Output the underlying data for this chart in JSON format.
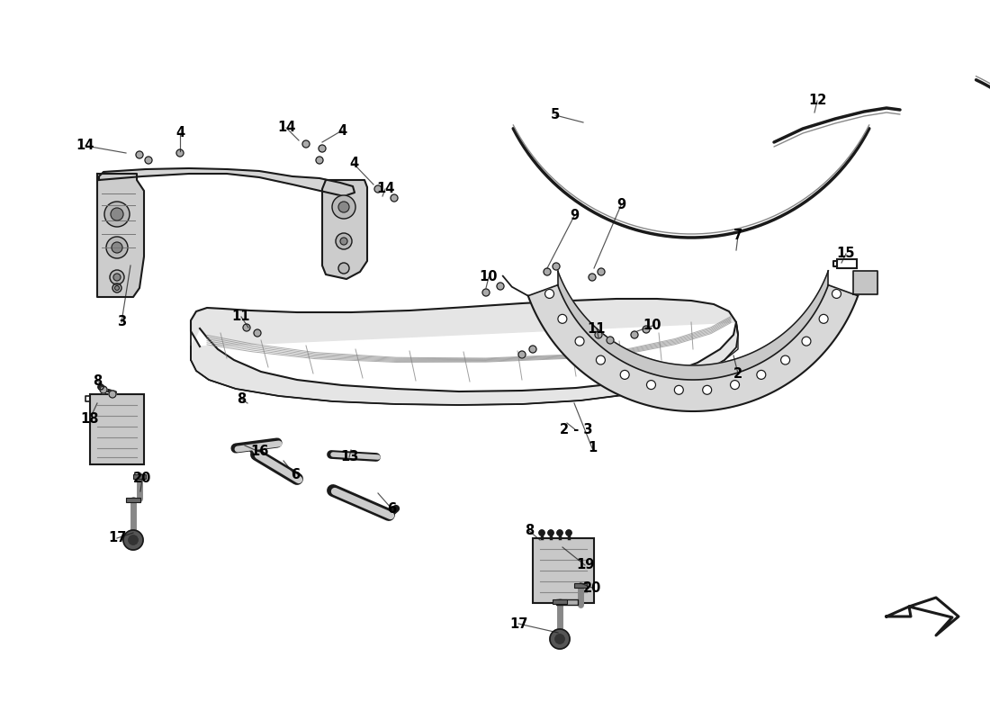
{
  "background_color": "#ffffff",
  "line_color": "#1a1a1a",
  "gray_fill": "#e8e8e8",
  "gray_mid": "#d0d0d0",
  "gray_dark": "#999999",
  "labels": [
    [
      "1",
      658,
      498
    ],
    [
      "2",
      820,
      415
    ],
    [
      "2 - 3",
      640,
      478
    ],
    [
      "3",
      135,
      358
    ],
    [
      "4",
      200,
      148
    ],
    [
      "4",
      380,
      145
    ],
    [
      "4",
      393,
      182
    ],
    [
      "5",
      617,
      128
    ],
    [
      "6",
      328,
      528
    ],
    [
      "6",
      435,
      565
    ],
    [
      "7",
      820,
      262
    ],
    [
      "8",
      108,
      423
    ],
    [
      "8",
      268,
      443
    ],
    [
      "8",
      588,
      590
    ],
    [
      "9",
      638,
      240
    ],
    [
      "9",
      690,
      228
    ],
    [
      "10",
      543,
      308
    ],
    [
      "10",
      725,
      362
    ],
    [
      "11",
      268,
      352
    ],
    [
      "11",
      663,
      365
    ],
    [
      "12",
      908,
      112
    ],
    [
      "13",
      388,
      508
    ],
    [
      "14",
      95,
      162
    ],
    [
      "14",
      318,
      142
    ],
    [
      "14",
      428,
      210
    ],
    [
      "15",
      940,
      282
    ],
    [
      "16",
      288,
      502
    ],
    [
      "17",
      130,
      598
    ],
    [
      "17",
      576,
      693
    ],
    [
      "18",
      100,
      465
    ],
    [
      "19",
      650,
      628
    ],
    [
      "20",
      158,
      532
    ],
    [
      "20",
      658,
      653
    ]
  ],
  "callout_lines": [
    [
      200,
      148,
      200,
      168
    ],
    [
      380,
      145,
      358,
      158
    ],
    [
      393,
      182,
      415,
      205
    ],
    [
      95,
      162,
      140,
      170
    ],
    [
      318,
      142,
      332,
      156
    ],
    [
      428,
      210,
      425,
      218
    ],
    [
      617,
      128,
      648,
      136
    ],
    [
      908,
      112,
      905,
      125
    ],
    [
      820,
      262,
      818,
      278
    ],
    [
      543,
      308,
      540,
      320
    ],
    [
      725,
      362,
      708,
      368
    ],
    [
      268,
      352,
      276,
      364
    ],
    [
      663,
      365,
      665,
      375
    ],
    [
      108,
      423,
      116,
      430
    ],
    [
      268,
      443,
      275,
      448
    ],
    [
      588,
      590,
      600,
      600
    ],
    [
      638,
      240,
      608,
      298
    ],
    [
      690,
      228,
      660,
      298
    ],
    [
      940,
      282,
      935,
      292
    ],
    [
      328,
      528,
      315,
      512
    ],
    [
      435,
      565,
      420,
      548
    ],
    [
      388,
      508,
      390,
      500
    ],
    [
      288,
      502,
      272,
      495
    ],
    [
      100,
      465,
      108,
      448
    ],
    [
      650,
      628,
      625,
      608
    ],
    [
      130,
      598,
      148,
      592
    ],
    [
      576,
      693,
      620,
      703
    ],
    [
      158,
      532,
      156,
      546
    ],
    [
      658,
      653,
      645,
      648
    ],
    [
      135,
      358,
      145,
      295
    ],
    [
      658,
      498,
      638,
      448
    ],
    [
      820,
      415,
      815,
      395
    ],
    [
      640,
      478,
      630,
      470
    ]
  ]
}
